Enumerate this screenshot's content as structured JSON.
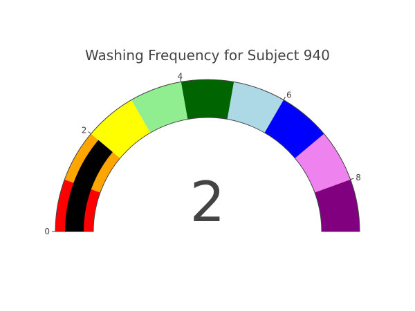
{
  "chart_data": {
    "type": "gauge",
    "title": "Washing Frequency for Subject 940",
    "value": 2,
    "value_label": "2",
    "range": [
      0,
      9
    ],
    "ticks": [
      {
        "value": 0,
        "label": "0"
      },
      {
        "value": 2,
        "label": "2"
      },
      {
        "value": 4,
        "label": "4"
      },
      {
        "value": 6,
        "label": "6"
      },
      {
        "value": 8,
        "label": "8"
      }
    ],
    "steps": [
      {
        "range": [
          0,
          1
        ],
        "color": "#ff0000"
      },
      {
        "range": [
          1,
          2
        ],
        "color": "#ffa500"
      },
      {
        "range": [
          2,
          3
        ],
        "color": "#ffff00"
      },
      {
        "range": [
          3,
          4
        ],
        "color": "#90ee90"
      },
      {
        "range": [
          4,
          5
        ],
        "color": "#006400"
      },
      {
        "range": [
          5,
          6
        ],
        "color": "#add8e6"
      },
      {
        "range": [
          6,
          7
        ],
        "color": "#0000ff"
      },
      {
        "range": [
          7,
          8
        ],
        "color": "#ee82ee"
      },
      {
        "range": [
          8,
          9
        ],
        "color": "#800080"
      }
    ],
    "bar_color": "#000000",
    "outline_color": "#444444"
  }
}
